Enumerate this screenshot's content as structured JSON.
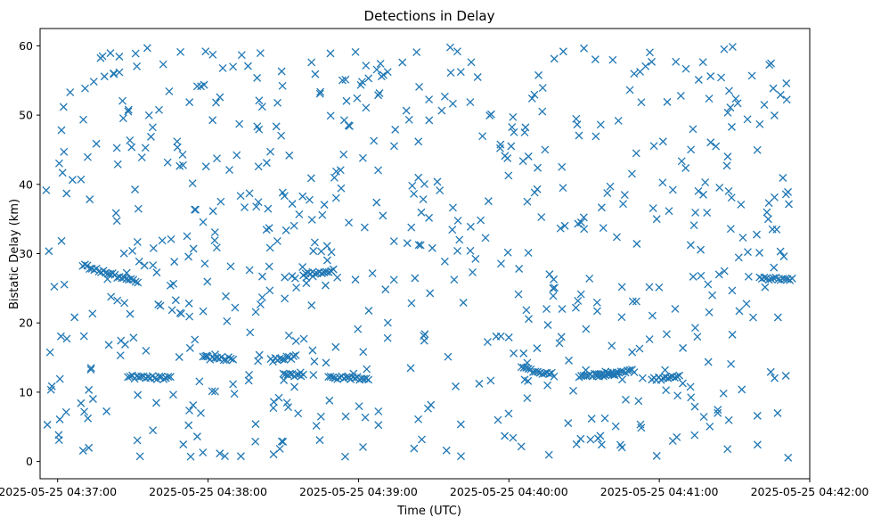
{
  "chart_data": {
    "type": "scatter",
    "title": "Detections in Delay",
    "xlabel": "Time (UTC)",
    "ylabel": "Bistatic Delay (km)",
    "marker": "x",
    "color": "#1f77b4",
    "grid": false,
    "legend": "none",
    "x_ticks": [
      "2025-05-25 04:37:00",
      "2025-05-25 04:38:00",
      "2025-05-25 04:39:00",
      "2025-05-25 04:40:00",
      "2025-05-25 04:41:00",
      "2025-05-25 04:42:00"
    ],
    "y_ticks": [
      "0",
      "10",
      "20",
      "30",
      "40",
      "50",
      "60"
    ],
    "xlim": [
      "2025-05-25 04:36:53",
      "2025-05-25 04:42:00"
    ],
    "ylim": [
      -2.5,
      62.5
    ],
    "x_range_of_detections": [
      "2025-05-25 04:36:55",
      "2025-05-25 04:41:52"
    ],
    "y_range_of_detections": [
      0.5,
      59.9
    ],
    "tracks": [
      {
        "x_start": "2025-05-25 04:37:10",
        "x_end": "2025-05-25 04:37:32",
        "y_start": 28.3,
        "y_end": 25.8
      },
      {
        "x_start": "2025-05-25 04:37:28",
        "x_end": "2025-05-25 04:37:45",
        "y_start": 12.2,
        "y_end": 12.0
      },
      {
        "x_start": "2025-05-25 04:37:58",
        "x_end": "2025-05-25 04:38:10",
        "y_start": 15.0,
        "y_end": 14.8
      },
      {
        "x_start": "2025-05-25 04:38:25",
        "x_end": "2025-05-25 04:38:35",
        "y_start": 14.6,
        "y_end": 15.1
      },
      {
        "x_start": "2025-05-25 04:38:30",
        "x_end": "2025-05-25 04:38:38",
        "y_start": 12.5,
        "y_end": 12.5
      },
      {
        "x_start": "2025-05-25 04:38:38",
        "x_end": "2025-05-25 04:38:50",
        "y_start": 27.1,
        "y_end": 27.5
      },
      {
        "x_start": "2025-05-25 04:38:48",
        "x_end": "2025-05-25 04:39:04",
        "y_start": 12.1,
        "y_end": 12.0
      },
      {
        "x_start": "2025-05-25 04:40:05",
        "x_end": "2025-05-25 04:40:18",
        "y_start": 13.5,
        "y_end": 12.5
      },
      {
        "x_start": "2025-05-25 04:40:28",
        "x_end": "2025-05-25 04:40:43",
        "y_start": 12.3,
        "y_end": 12.6
      },
      {
        "x_start": "2025-05-25 04:40:35",
        "x_end": "2025-05-25 04:40:50",
        "y_start": 12.6,
        "y_end": 13.1
      },
      {
        "x_start": "2025-05-25 04:40:57",
        "x_end": "2025-05-25 04:41:08",
        "y_start": 11.8,
        "y_end": 12.3
      },
      {
        "x_start": "2025-05-25 04:41:40",
        "x_end": "2025-05-25 04:41:53",
        "y_start": 26.4,
        "y_end": 26.4
      }
    ],
    "random_detection_count": 660
  }
}
